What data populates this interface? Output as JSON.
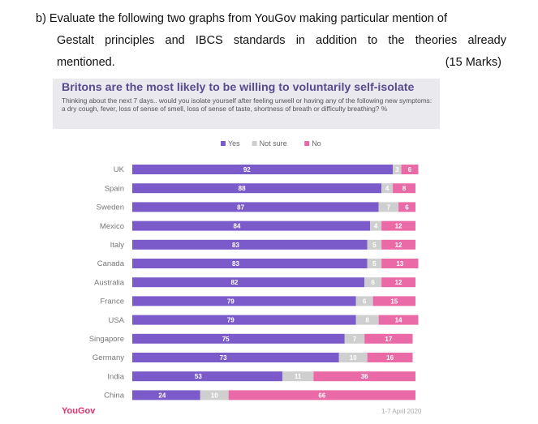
{
  "question": {
    "line1": "b) Evaluate the following two graphs from YouGov making particular mention of",
    "line2": "Gestalt principles and IBCS standards in addition to the theories already",
    "line3": "mentioned.",
    "marks": "(15 Marks)"
  },
  "footer": {
    "brand": "YouGov",
    "date": "1-7 April 2020"
  },
  "chart_data": {
    "type": "bar",
    "orientation": "horizontal",
    "stacked": true,
    "title": "Britons are the most likely to be willing to voluntarily self-isolate",
    "subtitle": "Thinking about the next 7 days.. would you isolate yourself after feeling unwell or having any of the following new symptoms: a dry cough, fever, loss of sense of smell, loss of sense of taste, shortness of breath or difficulty breathing? %",
    "legend_position": "top-center",
    "grid": false,
    "xlim": [
      0,
      100
    ],
    "categories": [
      "UK",
      "Spain",
      "Sweden",
      "Mexico",
      "Italy",
      "Canada",
      "Australia",
      "France",
      "USA",
      "Singapore",
      "Germany",
      "India",
      "China"
    ],
    "series": [
      {
        "name": "Yes",
        "color": "#7b5bc9",
        "values": [
          92,
          88,
          87,
          84,
          83,
          83,
          82,
          79,
          79,
          75,
          73,
          53,
          24
        ]
      },
      {
        "name": "Not sure",
        "color": "#cfcfcf",
        "values": [
          3,
          4,
          7,
          4,
          5,
          5,
          6,
          6,
          8,
          7,
          10,
          11,
          10
        ]
      },
      {
        "name": "No",
        "color": "#ea6aa8",
        "values": [
          6,
          8,
          6,
          12,
          12,
          13,
          12,
          15,
          14,
          17,
          16,
          36,
          66
        ]
      }
    ]
  }
}
